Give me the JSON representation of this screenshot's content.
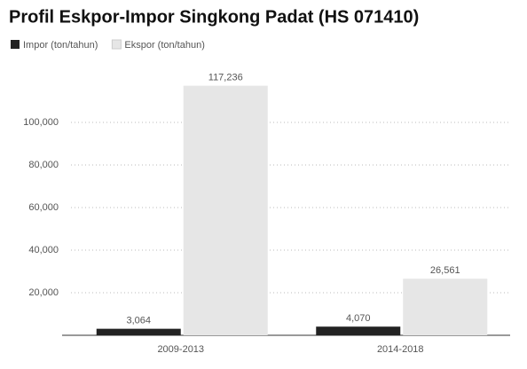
{
  "chart_data": {
    "type": "bar",
    "title": "Profil Eskpor-Impor Singkong Padat (HS 071410)",
    "categories": [
      "2009-2013",
      "2014-2018"
    ],
    "series": [
      {
        "name": "Impor (ton/tahun)",
        "color": "#222222",
        "values": [
          3064,
          4070
        ],
        "value_labels": [
          "3,064",
          "4,070"
        ]
      },
      {
        "name": "Ekspor (ton/tahun)",
        "color": "#e6e6e6",
        "values": [
          117236,
          26561
        ],
        "value_labels": [
          "117,236",
          "26,561"
        ]
      }
    ],
    "ylim": [
      0,
      120000
    ],
    "yticks": [
      {
        "value": 20000,
        "label": "20,000"
      },
      {
        "value": 40000,
        "label": "40,000"
      },
      {
        "value": 60000,
        "label": "60,000"
      },
      {
        "value": 80000,
        "label": "80,000"
      },
      {
        "value": 100000,
        "label": "100,000"
      }
    ],
    "grid": true,
    "legend": "top-left"
  }
}
